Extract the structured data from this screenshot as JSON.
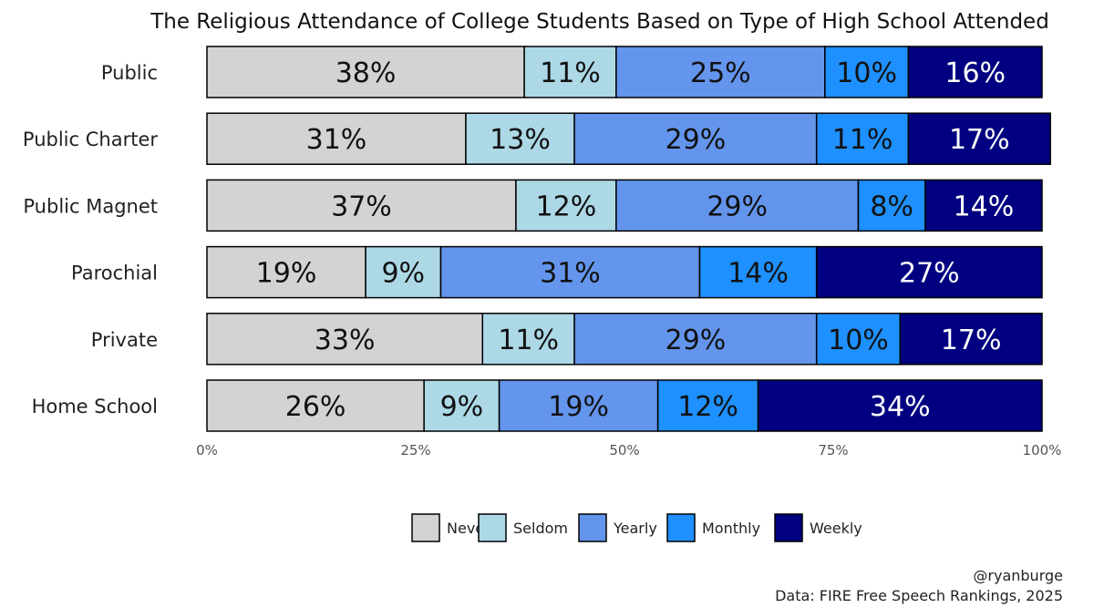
{
  "chart_data": {
    "type": "bar",
    "orientation": "horizontal",
    "stacked": true,
    "title": "The Religious Attendance of College Students Based on Type of High School Attended",
    "categories": [
      "Public",
      "Public Charter",
      "Public Magnet",
      "Parochial",
      "Private",
      "Home School"
    ],
    "series": [
      {
        "name": "Never",
        "color": "#d3d3d3",
        "label_color": "#111111",
        "values": [
          38,
          31,
          37,
          19,
          33,
          26
        ]
      },
      {
        "name": "Seldom",
        "color": "#add8e6",
        "label_color": "#111111",
        "values": [
          11,
          13,
          12,
          9,
          11,
          9
        ]
      },
      {
        "name": "Yearly",
        "color": "#6495ed",
        "label_color": "#111111",
        "values": [
          25,
          29,
          29,
          31,
          29,
          19
        ]
      },
      {
        "name": "Monthly",
        "color": "#1e90ff",
        "label_color": "#111111",
        "values": [
          10,
          11,
          8,
          14,
          10,
          12
        ]
      },
      {
        "name": "Weekly",
        "color": "#000080",
        "label_color": "#ffffff",
        "values": [
          16,
          17,
          14,
          27,
          17,
          34
        ]
      }
    ],
    "x_ticks": [
      0,
      25,
      50,
      75,
      100
    ],
    "x_tick_labels": [
      "0%",
      "25%",
      "50%",
      "75%",
      "100%"
    ],
    "xlim": [
      0,
      100
    ],
    "grid": false,
    "legend_position": "bottom",
    "value_format": "{v}%"
  },
  "caption": {
    "author": "@ryanburge",
    "source": "Data: FIRE Free Speech Rankings, 2025"
  }
}
